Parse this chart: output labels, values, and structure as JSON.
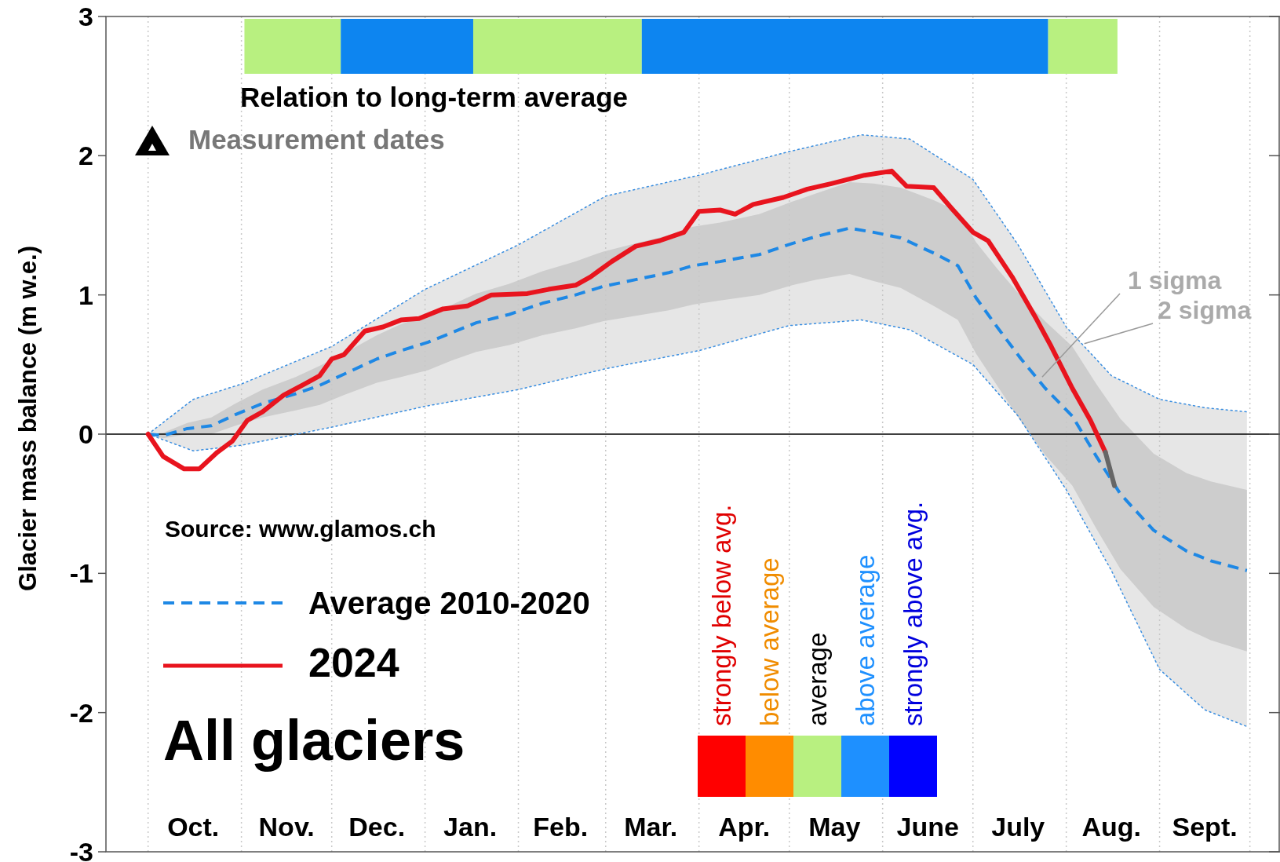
{
  "chart_data": {
    "type": "line",
    "title": "All glaciers",
    "ylabel": "Glacier mass balance (m w.e.)",
    "xlim": [
      "2023-09-17",
      "2024-10-11"
    ],
    "ylim": [
      -3,
      3
    ],
    "yticks": [
      -3,
      -2,
      -1,
      0,
      1,
      2,
      3
    ],
    "xticks": [
      {
        "value": "2023-10-16",
        "label": "Oct."
      },
      {
        "value": "2023-11-16",
        "label": "Nov."
      },
      {
        "value": "2023-12-16",
        "label": "Dec."
      },
      {
        "value": "2024-01-16",
        "label": "Jan."
      },
      {
        "value": "2024-02-15",
        "label": "Feb."
      },
      {
        "value": "2024-03-16",
        "label": "Mar."
      },
      {
        "value": "2024-04-16",
        "label": "Apr."
      },
      {
        "value": "2024-05-16",
        "label": "May"
      },
      {
        "value": "2024-06-16",
        "label": "June"
      },
      {
        "value": "2024-07-16",
        "label": "July"
      },
      {
        "value": "2024-08-16",
        "label": "Aug."
      },
      {
        "value": "2024-09-16",
        "label": "Sept."
      }
    ],
    "legend": "left",
    "series": [
      {
        "color": "#3a8ee0",
        "line_style": "dotted",
        "x": [
          "2023-10-01",
          "2023-10-16",
          "2023-11-01",
          "2023-12-01",
          "2024-01-01",
          "2024-02-01",
          "2024-03-01",
          "2024-04-01",
          "2024-05-01",
          "2024-05-25",
          "2024-06-10",
          "2024-07-01",
          "2024-07-16",
          "2024-08-01",
          "2024-08-16",
          "2024-09-01",
          "2024-09-16",
          "2024-09-30"
        ],
        "values": [
          0,
          0.25,
          0.36,
          0.63,
          1.04,
          1.36,
          1.71,
          1.86,
          2.03,
          2.15,
          2.12,
          1.83,
          1.36,
          0.77,
          0.42,
          0.25,
          0.19,
          0.16
        ]
      },
      {
        "color": "#3a8ee0",
        "line_style": "dotted",
        "x": [
          "2023-10-01",
          "2023-10-16",
          "2023-11-01",
          "2023-12-01",
          "2024-01-01",
          "2024-02-01",
          "2024-03-01",
          "2024-04-01",
          "2024-05-01",
          "2024-05-25",
          "2024-06-10",
          "2024-07-01",
          "2024-07-16",
          "2024-08-01",
          "2024-08-16",
          "2024-09-01",
          "2024-09-16",
          "2024-09-30"
        ],
        "values": [
          0,
          -0.12,
          -0.08,
          0.05,
          0.2,
          0.32,
          0.47,
          0.6,
          0.78,
          0.82,
          0.75,
          0.5,
          0.13,
          -0.4,
          -0.98,
          -1.69,
          -1.98,
          -2.1
        ],
        "lower": [
          0,
          -0.12,
          -0.08,
          0.05,
          0.2,
          0.32,
          0.47,
          0.6,
          0.78,
          0.82,
          0.75,
          0.5,
          0.13,
          -0.4,
          -0.98,
          -1.69,
          -1.98,
          -2.1
        ],
        "upper": [
          0,
          0.25,
          0.36,
          0.63,
          1.04,
          1.36,
          1.71,
          1.86,
          2.03,
          2.15,
          2.12,
          1.83,
          1.36,
          0.77,
          0.42,
          0.25,
          0.19,
          0.16
        ]
      },
      {
        "name": "Average 2010-2020",
        "color": "#1e88e5",
        "line_style": "dashed",
        "x": [
          "2023-10-01",
          "2023-10-06",
          "2023-10-14",
          "2023-10-22",
          "2023-10-30",
          "2023-11-08",
          "2023-11-19",
          "2023-11-27",
          "2023-12-05",
          "2023-12-16",
          "2023-12-24",
          "2024-01-02",
          "2024-01-10",
          "2024-01-18",
          "2024-01-29",
          "2024-02-09",
          "2024-02-20",
          "2024-02-29",
          "2024-03-11",
          "2024-03-22",
          "2024-03-30",
          "2024-04-08",
          "2024-04-21",
          "2024-05-02",
          "2024-05-10",
          "2024-05-21",
          "2024-05-29",
          "2024-06-07",
          "2024-06-18",
          "2024-06-26",
          "2024-07-02",
          "2024-07-09",
          "2024-07-17",
          "2024-07-25",
          "2024-08-03",
          "2024-08-11",
          "2024-08-19",
          "2024-08-30",
          "2024-09-10",
          "2024-09-18",
          "2024-09-30"
        ],
        "values": [
          0,
          -0.01,
          0.04,
          0.06,
          0.14,
          0.22,
          0.29,
          0.35,
          0.43,
          0.54,
          0.6,
          0.66,
          0.73,
          0.8,
          0.86,
          0.94,
          1.0,
          1.06,
          1.11,
          1.16,
          1.21,
          1.24,
          1.29,
          1.37,
          1.42,
          1.48,
          1.45,
          1.41,
          1.3,
          1.21,
          0.98,
          0.77,
          0.54,
          0.33,
          0.13,
          -0.16,
          -0.43,
          -0.69,
          -0.84,
          -0.91,
          -0.98
        ],
        "upper": [
          0,
          0.01,
          0.08,
          0.12,
          0.22,
          0.32,
          0.41,
          0.49,
          0.58,
          0.71,
          0.79,
          0.86,
          0.93,
          1.01,
          1.08,
          1.17,
          1.24,
          1.31,
          1.37,
          1.43,
          1.49,
          1.52,
          1.58,
          1.67,
          1.73,
          1.81,
          1.8,
          1.77,
          1.68,
          1.6,
          1.38,
          1.19,
          0.99,
          0.81,
          0.63,
          0.36,
          0.11,
          -0.14,
          -0.28,
          -0.34,
          -0.4
        ],
        "lower": [
          0,
          -0.03,
          0,
          0,
          0.06,
          0.12,
          0.17,
          0.21,
          0.28,
          0.37,
          0.41,
          0.46,
          0.53,
          0.59,
          0.64,
          0.71,
          0.76,
          0.81,
          0.85,
          0.89,
          0.93,
          0.96,
          1.0,
          1.07,
          1.11,
          1.15,
          1.1,
          1.05,
          0.92,
          0.82,
          0.58,
          0.35,
          0.09,
          -0.15,
          -0.37,
          -0.68,
          -0.97,
          -1.24,
          -1.4,
          -1.48,
          -1.56
        ]
      },
      {
        "name": "2024",
        "color": "#e8141e",
        "line_style": "solid",
        "x": [
          "2023-10-01",
          "2023-10-06",
          "2023-10-13",
          "2023-10-18",
          "2023-10-24",
          "2023-10-29",
          "2023-11-03",
          "2023-11-08",
          "2023-11-15",
          "2023-11-22",
          "2023-11-27",
          "2023-12-01",
          "2023-12-05",
          "2023-12-12",
          "2023-12-18",
          "2023-12-24",
          "2023-12-30",
          "2024-01-07",
          "2024-01-15",
          "2024-01-23",
          "2024-02-04",
          "2024-02-11",
          "2024-02-20",
          "2024-02-25",
          "2024-03-03",
          "2024-03-11",
          "2024-03-19",
          "2024-03-27",
          "2024-04-01",
          "2024-04-08",
          "2024-04-13",
          "2024-04-19",
          "2024-04-29",
          "2024-05-07",
          "2024-05-15",
          "2024-05-26",
          "2024-06-04",
          "2024-06-09",
          "2024-06-18",
          "2024-06-24",
          "2024-07-01",
          "2024-07-06",
          "2024-07-14",
          "2024-07-22",
          "2024-07-27",
          "2024-08-03",
          "2024-08-09",
          "2024-08-14"
        ],
        "values": [
          0,
          -0.16,
          -0.25,
          -0.25,
          -0.13,
          -0.05,
          0.1,
          0.16,
          0.28,
          0.36,
          0.42,
          0.54,
          0.57,
          0.74,
          0.77,
          0.82,
          0.83,
          0.9,
          0.92,
          1.0,
          1.01,
          1.04,
          1.07,
          1.13,
          1.24,
          1.35,
          1.39,
          1.45,
          1.6,
          1.61,
          1.58,
          1.65,
          1.7,
          1.76,
          1.8,
          1.86,
          1.89,
          1.78,
          1.77,
          1.62,
          1.45,
          1.39,
          1.13,
          0.83,
          0.63,
          0.33,
          0.1,
          -0.13
        ]
      },
      {
        "color": "#666666",
        "line_style": "solid",
        "x": [
          "2024-08-14",
          "2024-08-17"
        ],
        "values": [
          -0.13,
          -0.37
        ]
      }
    ],
    "ref_lines": [
      {
        "axis": "y",
        "value": 0,
        "color": "#000000",
        "line_style": "solid"
      },
      {
        "axis": "x",
        "value": "2023-10-01",
        "color": "#c8c8c8",
        "line_style": "dotted"
      },
      {
        "axis": "x",
        "value": "2023-11-01",
        "color": "#c8c8c8",
        "line_style": "dotted"
      },
      {
        "axis": "x",
        "value": "2023-12-01",
        "color": "#c8c8c8",
        "line_style": "dotted"
      },
      {
        "axis": "x",
        "value": "2024-01-01",
        "color": "#c8c8c8",
        "line_style": "dotted"
      },
      {
        "axis": "x",
        "value": "2024-02-01",
        "color": "#c8c8c8",
        "line_style": "dotted"
      },
      {
        "axis": "x",
        "value": "2024-03-01",
        "color": "#c8c8c8",
        "line_style": "dotted"
      },
      {
        "axis": "x",
        "value": "2024-04-01",
        "color": "#c8c8c8",
        "line_style": "dotted"
      },
      {
        "axis": "x",
        "value": "2024-05-01",
        "color": "#c8c8c8",
        "line_style": "dotted"
      },
      {
        "axis": "x",
        "value": "2024-06-01",
        "color": "#c8c8c8",
        "line_style": "dotted"
      },
      {
        "axis": "x",
        "value": "2024-07-01",
        "color": "#c8c8c8",
        "line_style": "dotted"
      },
      {
        "axis": "x",
        "value": "2024-08-01",
        "color": "#c8c8c8",
        "line_style": "dotted"
      },
      {
        "axis": "x",
        "value": "2024-09-01",
        "color": "#c8c8c8",
        "line_style": "dotted"
      },
      {
        "axis": "x",
        "value": "2024-10-01",
        "color": "#c8c8c8",
        "line_style": "dotted"
      }
    ],
    "bands": [
      {
        "axis": "x",
        "from": "2023-11-02",
        "to": "2023-12-04",
        "color": "#b8f080"
      },
      {
        "axis": "x",
        "from": "2023-12-04",
        "to": "2024-01-17",
        "color": "#0d85f0"
      },
      {
        "axis": "x",
        "from": "2024-01-17",
        "to": "2024-03-13",
        "color": "#b8f080"
      },
      {
        "axis": "x",
        "from": "2024-03-13",
        "to": "2024-07-26",
        "color": "#0d85f0"
      },
      {
        "axis": "x",
        "from": "2024-07-26",
        "to": "2024-08-18",
        "color": "#b8f080"
      }
    ],
    "annotations": [
      "Relation to long-term average",
      "Measurement dates",
      "Source: www.glamos.ch",
      "strongly below avg.",
      "below average",
      "average",
      "above average",
      "strongly above avg.",
      {
        "text": "1 sigma",
        "x": "2024-07-24",
        "y": 0.41
      },
      {
        "text": "2 sigma",
        "x": "2024-08-07",
        "y": 0.65
      }
    ]
  }
}
